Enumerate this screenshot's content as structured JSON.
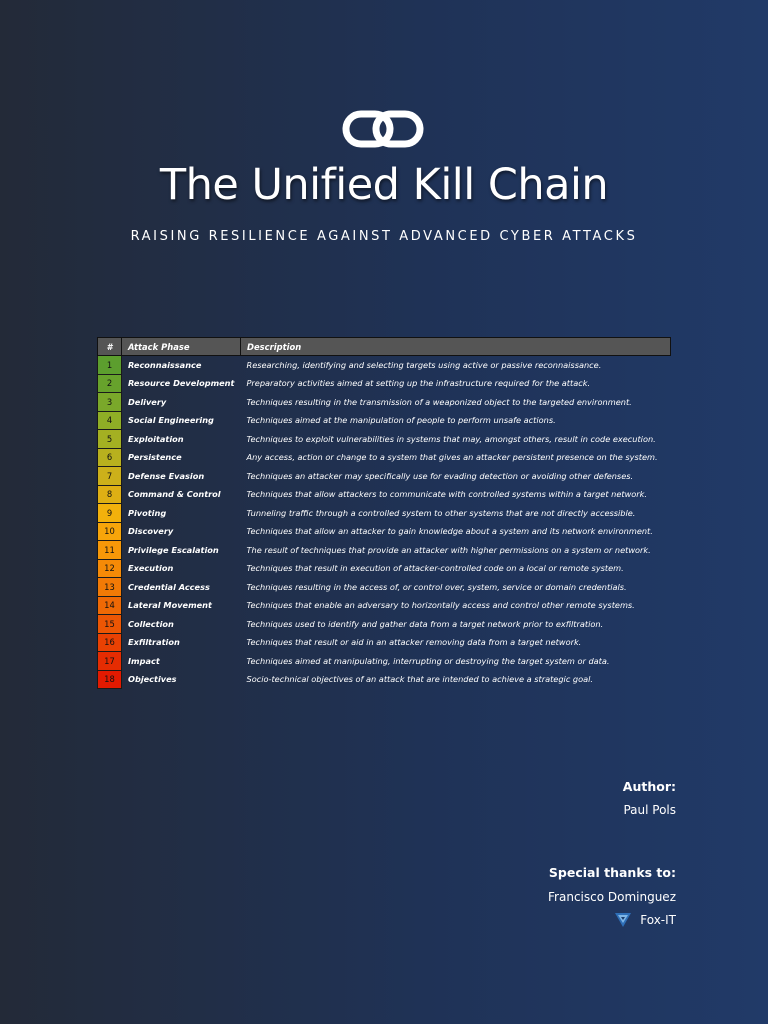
{
  "header": {
    "logo_icon": "chain-link-icon",
    "title": "The Unified Kill Chain",
    "subtitle": "RAISING RESILIENCE AGAINST ADVANCED CYBER ATTACKS"
  },
  "table": {
    "headers": {
      "num": "#",
      "phase": "Attack Phase",
      "description": "Description"
    },
    "rows": [
      {
        "num": "1",
        "phase": "Reconnaissance",
        "description": "Researching, identifying and selecting targets using active or passive reconnaissance.",
        "color": "#5c9e2e"
      },
      {
        "num": "2",
        "phase": "Resource Development",
        "description": "Preparatory activities aimed at setting up the infrastructure required for the attack.",
        "color": "#67a22c"
      },
      {
        "num": "3",
        "phase": "Delivery",
        "description": "Techniques resulting in the transmission of a weaponized object to the targeted environment.",
        "color": "#7aa82a"
      },
      {
        "num": "4",
        "phase": "Social Engineering",
        "description": "Techniques aimed at the manipulation of people to perform unsafe actions.",
        "color": "#8fae26"
      },
      {
        "num": "5",
        "phase": "Exploitation",
        "description": "Techniques to exploit vulnerabilities in systems that may, amongst others, result in code execution.",
        "color": "#a4b022"
      },
      {
        "num": "6",
        "phase": "Persistence",
        "description": "Any access, action or change to a system that gives an attacker persistent presence on the system.",
        "color": "#b8b01e"
      },
      {
        "num": "7",
        "phase": "Defense Evasion",
        "description": "Techniques an attacker may specifically use for evading detection or avoiding other defenses.",
        "color": "#ccb01a"
      },
      {
        "num": "8",
        "phase": "Command & Control",
        "description": "Techniques that allow attackers to communicate with controlled systems within a target network.",
        "color": "#deaf14"
      },
      {
        "num": "9",
        "phase": "Pivoting",
        "description": "Tunneling traffic through a controlled system to other systems that are not directly accessible.",
        "color": "#f2b10c"
      },
      {
        "num": "10",
        "phase": "Discovery",
        "description": "Techniques that allow an attacker to gain knowledge about a system and its network environment.",
        "color": "#f7a50a"
      },
      {
        "num": "11",
        "phase": "Privilege Escalation",
        "description": "The result of techniques that provide an attacker with higher permissions on a system or network.",
        "color": "#f79808"
      },
      {
        "num": "12",
        "phase": "Execution",
        "description": "Techniques that result in execution of attacker-controlled code on a local or remote system.",
        "color": "#f58a07"
      },
      {
        "num": "13",
        "phase": "Credential Access",
        "description": "Techniques resulting in the access of, or control over, system, service or domain credentials.",
        "color": "#f27a06"
      },
      {
        "num": "14",
        "phase": "Lateral Movement",
        "description": "Techniques that enable an adversary to horizontally access and control other remote systems.",
        "color": "#ef6905"
      },
      {
        "num": "15",
        "phase": "Collection",
        "description": "Techniques used to identify and gather data from a target network prior to exfiltration.",
        "color": "#ec5604"
      },
      {
        "num": "16",
        "phase": "Exfiltration",
        "description": "Techniques that result or aid in an attacker removing data from a target network.",
        "color": "#e94103"
      },
      {
        "num": "17",
        "phase": "Impact",
        "description": "Techniques aimed at manipulating, interrupting or destroying the target system or data.",
        "color": "#e52c02"
      },
      {
        "num": "18",
        "phase": "Objectives",
        "description": "Socio-technical objectives of an attack that are intended to achieve a strategic goal.",
        "color": "#e21a01"
      }
    ]
  },
  "credits": {
    "author_label": "Author:",
    "author_name": "Paul Pols",
    "thanks_label": "Special thanks to:",
    "thanks_name": "Francisco Dominguez",
    "org_icon": "fox-it-logo-icon",
    "org_name": "Fox-IT"
  }
}
